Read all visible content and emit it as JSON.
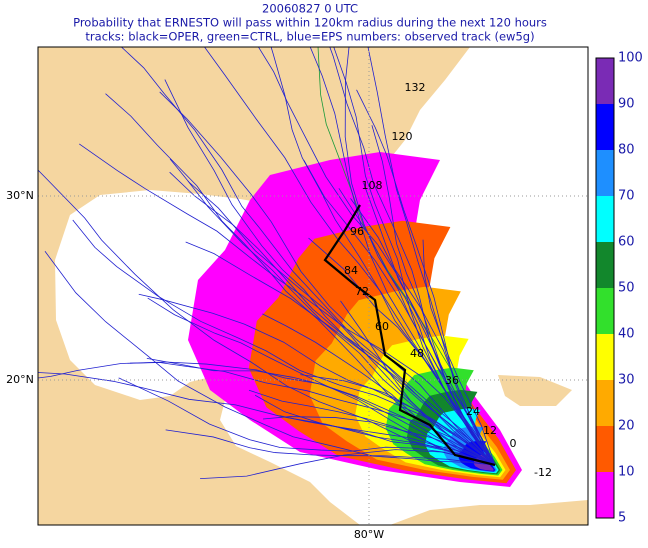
{
  "header": {
    "date": "20060827 0 UTC",
    "title": "Probability that ERNESTO will pass within 120km radius during the next 120 hours",
    "legend_note": "tracks: black=OPER, green=CTRL, blue=EPS numbers: observed track (ew5g)"
  },
  "latitude_labels": [
    "30°N",
    "20°N"
  ],
  "longitude_labels": [
    "80°W"
  ],
  "track_labels": [
    "132",
    "120",
    "108",
    "96",
    "84",
    "72",
    "60",
    "48",
    "36",
    "24",
    "12",
    "0",
    "-12"
  ],
  "colorbar": {
    "labels": [
      "100",
      "90",
      "80",
      "70",
      "60",
      "50",
      "40",
      "30",
      "20",
      "10",
      "5"
    ],
    "colors": [
      "#7a2bb5",
      "#0000ff",
      "#1e8fff",
      "#00ffff",
      "#12872c",
      "#32e02c",
      "#ffff00",
      "#ffaa00",
      "#ff5a00",
      "#ff00ff"
    ]
  }
}
